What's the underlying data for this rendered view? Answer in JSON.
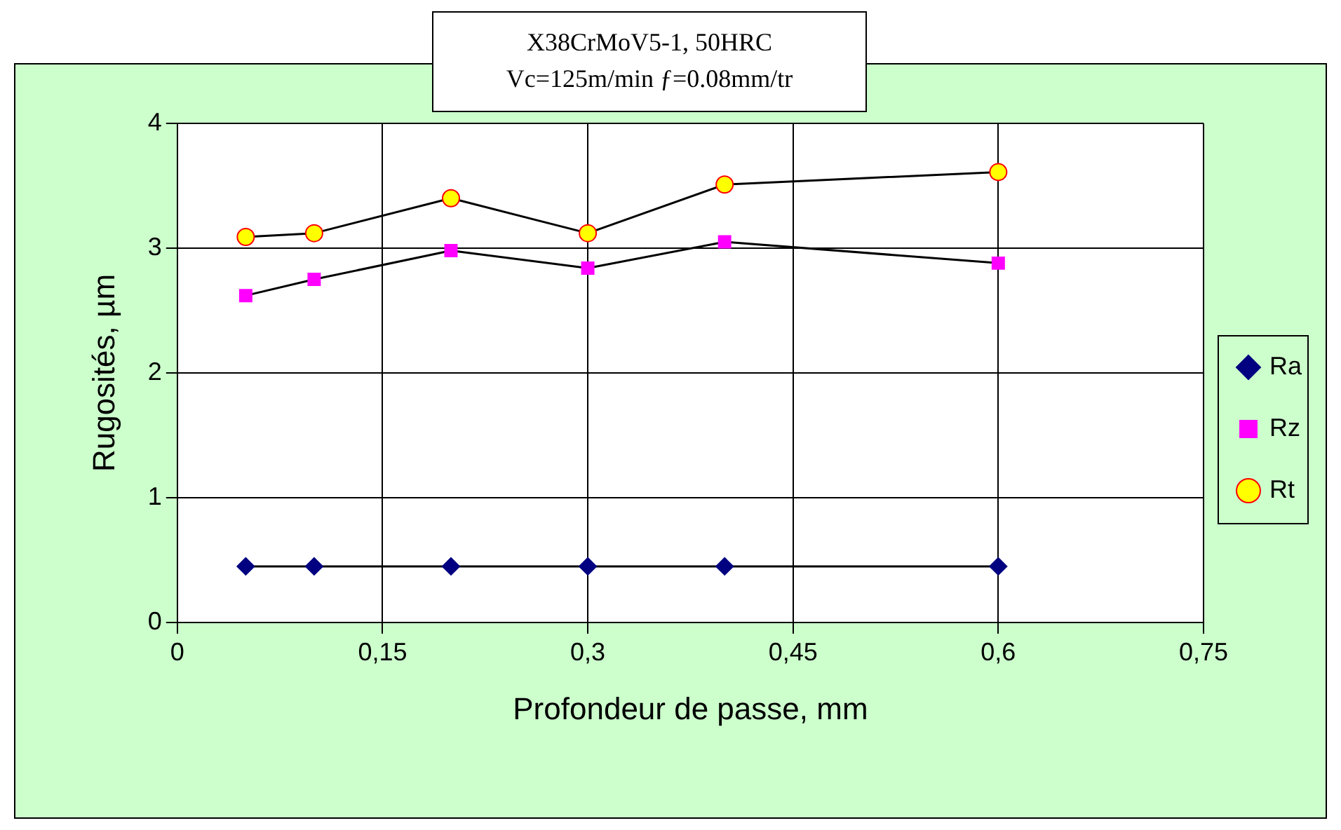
{
  "chart_data": {
    "type": "line",
    "title": "X38CrMoV5-1, 50HRC",
    "subtitle": "Vc=125m/min ƒ=0.08mm/tr",
    "xlabel": "Profondeur de passe, mm",
    "ylabel": "Rugosités, µm",
    "x": [
      0.05,
      0.1,
      0.2,
      0.3,
      0.4,
      0.6
    ],
    "series": [
      {
        "name": "Ra",
        "color": "#000080",
        "marker": "diamond",
        "values": [
          0.45,
          0.45,
          0.45,
          0.45,
          0.45,
          0.45
        ]
      },
      {
        "name": "Rz",
        "color": "#ff00ff",
        "marker": "square",
        "values": [
          2.62,
          2.75,
          2.98,
          2.84,
          3.05,
          2.88
        ]
      },
      {
        "name": "Rt",
        "color": "#ffff00",
        "marker": "circle",
        "values": [
          3.09,
          3.12,
          3.4,
          3.12,
          3.51,
          3.61
        ]
      }
    ],
    "xlim": [
      0,
      0.75
    ],
    "xticks": [
      0,
      {
        "value": 0.15,
        "label": "0,15"
      },
      {
        "value": 0.3,
        "label": "0,3"
      },
      {
        "value": 0.45,
        "label": "0,45"
      },
      {
        "value": 0.6,
        "label": "0,6"
      },
      {
        "value": 0.75,
        "label": "0,75"
      }
    ],
    "ylim": [
      0,
      4
    ],
    "yticks": [
      0,
      1,
      2,
      3,
      4
    ],
    "grid": true,
    "legend": "right",
    "line_style": "solid"
  }
}
